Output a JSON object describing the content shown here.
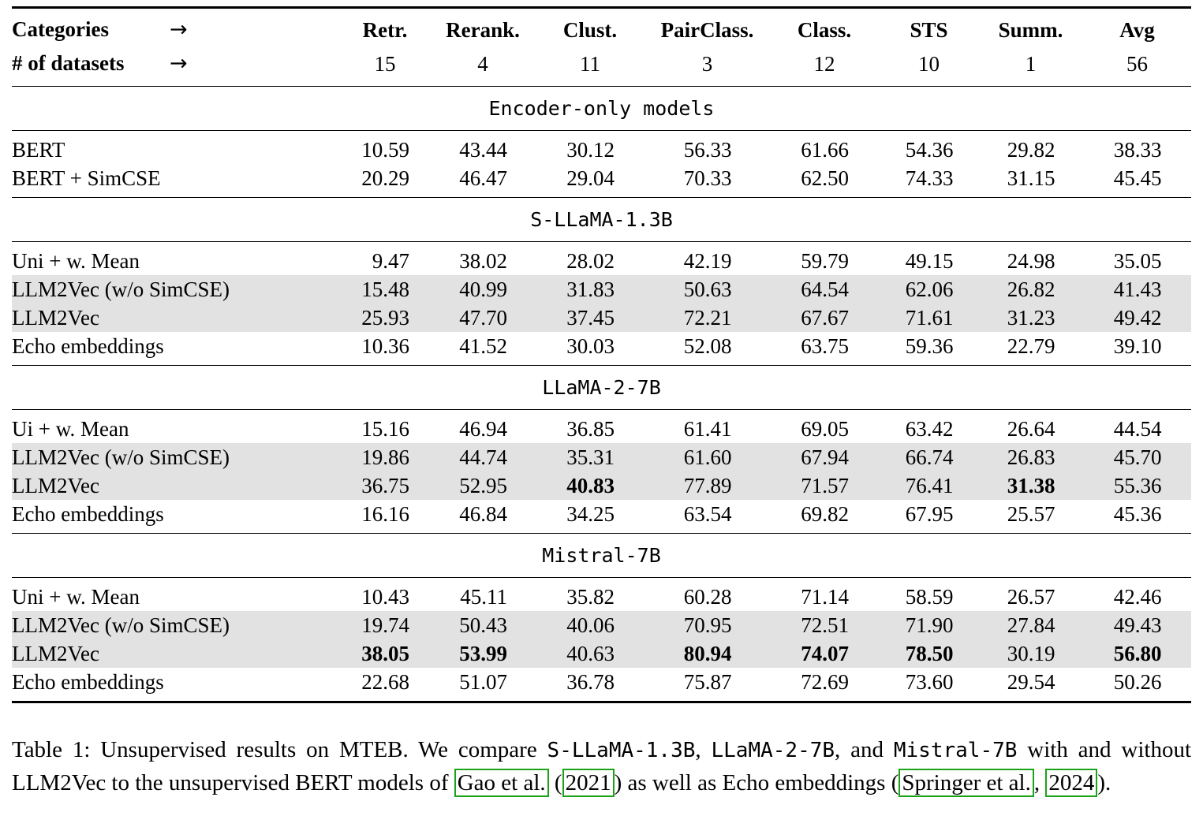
{
  "colors": {
    "row_shade": "#e2e2e2",
    "link_box": "#1aa31a",
    "rule": "#000000"
  },
  "table": {
    "header": {
      "row1_label": "Categories",
      "row2_label": "# of datasets",
      "arrow": "→",
      "columns": [
        "Retr.",
        "Rerank.",
        "Clust.",
        "PairClass.",
        "Class.",
        "STS",
        "Summ.",
        "Avg"
      ],
      "counts": [
        "15",
        "4",
        "11",
        "3",
        "12",
        "10",
        "1",
        "56"
      ]
    },
    "sections": [
      {
        "title": "Encoder-only models",
        "rows": [
          {
            "label": "BERT",
            "shaded": false,
            "bold": [],
            "values": [
              "10.59",
              "43.44",
              "30.12",
              "56.33",
              "61.66",
              "54.36",
              "29.82",
              "38.33"
            ]
          },
          {
            "label": "BERT + SimCSE",
            "shaded": false,
            "bold": [],
            "values": [
              "20.29",
              "46.47",
              "29.04",
              "70.33",
              "62.50",
              "74.33",
              "31.15",
              "45.45"
            ]
          }
        ]
      },
      {
        "title": "S-LLaMA-1.3B",
        "rows": [
          {
            "label": "Uni + w. Mean",
            "shaded": false,
            "bold": [],
            "values": [
              "9.47",
              "38.02",
              "28.02",
              "42.19",
              "59.79",
              "49.15",
              "24.98",
              "35.05"
            ]
          },
          {
            "label": "LLM2Vec (w/o SimCSE)",
            "shaded": true,
            "bold": [],
            "values": [
              "15.48",
              "40.99",
              "31.83",
              "50.63",
              "64.54",
              "62.06",
              "26.82",
              "41.43"
            ]
          },
          {
            "label": "LLM2Vec",
            "shaded": true,
            "bold": [],
            "values": [
              "25.93",
              "47.70",
              "37.45",
              "72.21",
              "67.67",
              "71.61",
              "31.23",
              "49.42"
            ]
          },
          {
            "label": "Echo embeddings",
            "shaded": false,
            "bold": [],
            "values": [
              "10.36",
              "41.52",
              "30.03",
              "52.08",
              "63.75",
              "59.36",
              "22.79",
              "39.10"
            ]
          }
        ]
      },
      {
        "title": "LLaMA-2-7B",
        "rows": [
          {
            "label": "Ui + w. Mean",
            "shaded": false,
            "bold": [],
            "values": [
              "15.16",
              "46.94",
              "36.85",
              "61.41",
              "69.05",
              "63.42",
              "26.64",
              "44.54"
            ]
          },
          {
            "label": "LLM2Vec (w/o SimCSE)",
            "shaded": true,
            "bold": [],
            "values": [
              "19.86",
              "44.74",
              "35.31",
              "61.60",
              "67.94",
              "66.74",
              "26.83",
              "45.70"
            ]
          },
          {
            "label": "LLM2Vec",
            "shaded": true,
            "bold": [
              2,
              6
            ],
            "values": [
              "36.75",
              "52.95",
              "40.83",
              "77.89",
              "71.57",
              "76.41",
              "31.38",
              "55.36"
            ]
          },
          {
            "label": "Echo embeddings",
            "shaded": false,
            "bold": [],
            "values": [
              "16.16",
              "46.84",
              "34.25",
              "63.54",
              "69.82",
              "67.95",
              "25.57",
              "45.36"
            ]
          }
        ]
      },
      {
        "title": "Mistral-7B",
        "rows": [
          {
            "label": "Uni + w. Mean",
            "shaded": false,
            "bold": [],
            "values": [
              "10.43",
              "45.11",
              "35.82",
              "60.28",
              "71.14",
              "58.59",
              "26.57",
              "42.46"
            ]
          },
          {
            "label": "LLM2Vec (w/o SimCSE)",
            "shaded": true,
            "bold": [],
            "values": [
              "19.74",
              "50.43",
              "40.06",
              "70.95",
              "72.51",
              "71.90",
              "27.84",
              "49.43"
            ]
          },
          {
            "label": "LLM2Vec",
            "shaded": true,
            "bold": [
              0,
              1,
              3,
              4,
              5,
              7
            ],
            "values": [
              "38.05",
              "53.99",
              "40.63",
              "80.94",
              "74.07",
              "78.50",
              "30.19",
              "56.80"
            ]
          },
          {
            "label": "Echo embeddings",
            "shaded": false,
            "bold": [],
            "values": [
              "22.68",
              "51.07",
              "36.78",
              "75.87",
              "72.69",
              "73.60",
              "29.54",
              "50.26"
            ]
          }
        ]
      }
    ]
  },
  "caption": {
    "segments": [
      {
        "style": "serif",
        "text": "Table 1: Unsupervised results on MTEB. We compare "
      },
      {
        "style": "mono",
        "text": "S-LLaMA-1.3B"
      },
      {
        "style": "serif",
        "text": ", "
      },
      {
        "style": "mono",
        "text": "LLaMA-2-7B"
      },
      {
        "style": "serif",
        "text": ", and "
      },
      {
        "style": "mono",
        "text": "Mistral-7B"
      },
      {
        "style": "serif",
        "text": " with and without LLM2Vec to the unsupervised BERT models of "
      },
      {
        "style": "link",
        "text": "Gao et al."
      },
      {
        "style": "serif",
        "text": " ("
      },
      {
        "style": "link",
        "text": "2021"
      },
      {
        "style": "serif",
        "text": ") as well as Echo embeddings ("
      },
      {
        "style": "link",
        "text": "Springer et al."
      },
      {
        "style": "serif",
        "text": ", "
      },
      {
        "style": "link",
        "text": "2024"
      },
      {
        "style": "serif",
        "text": ")."
      }
    ]
  }
}
